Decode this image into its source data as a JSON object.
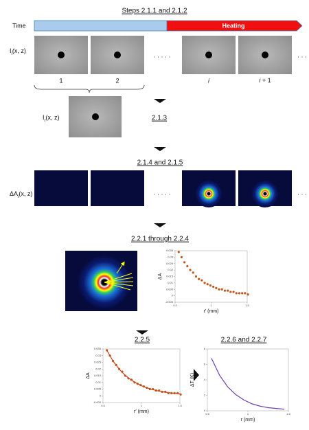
{
  "steps": {
    "acquire": "Steps 2.1.1 and 2.1.2",
    "reference": "2.1.3",
    "difference": "2.1.4 and 2.1.5",
    "profile": "2.2.1 through 2.2.4",
    "fit": "2.2.5",
    "temperature": "2.2.6 and 2.2.7"
  },
  "timeline": {
    "label": "Time",
    "heating": "Heating"
  },
  "frames": {
    "symbol": "I",
    "sub": "i",
    "args": "(x, z)",
    "indices": [
      {
        "main": "1"
      },
      {
        "main": "2"
      },
      {
        "main": "i"
      },
      {
        "main": "i",
        "rest": " + 1"
      }
    ],
    "ellipsis": "· · · · ·",
    "tail": "· · ·"
  },
  "reference": {
    "symbol": "I",
    "sub": "r",
    "args": "(x, z)"
  },
  "difference": {
    "symbol": "ΔA",
    "sub": "i",
    "args": "(x, z)",
    "ellipsis": "· · · · ·",
    "tail": "· · ·"
  },
  "charts": [
    {
      "type": "scatter",
      "ylabel": "ΔA",
      "xlabel": "r′ (mm)",
      "color": "#c0561c",
      "xlim": [
        0.5,
        1.5
      ],
      "ylim": [
        -0.005,
        0.035
      ],
      "xticks": [
        0.5,
        1,
        1.5
      ],
      "yticks": [
        -0.005,
        0,
        0.005,
        0.01,
        0.015,
        0.02,
        0.025,
        0.03,
        0.035
      ],
      "x": [
        0.55,
        0.59,
        0.63,
        0.67,
        0.71,
        0.75,
        0.79,
        0.83,
        0.87,
        0.91,
        0.95,
        0.99,
        1.03,
        1.07,
        1.11,
        1.15,
        1.19,
        1.23,
        1.27,
        1.31,
        1.35,
        1.39,
        1.43,
        1.47,
        1.51
      ],
      "values": [
        0.034,
        0.03,
        0.026,
        0.023,
        0.02,
        0.018,
        0.015,
        0.013,
        0.012,
        0.01,
        0.009,
        0.008,
        0.007,
        0.006,
        0.005,
        0.005,
        0.004,
        0.004,
        0.003,
        0.003,
        0.002,
        0.002,
        0.002,
        0.002,
        0.001
      ]
    },
    {
      "type": "scatter",
      "ylabel": "ΔA",
      "xlabel": "r′ (mm)",
      "color": "#c0561c",
      "line_color": "#d03a1a",
      "xlim": [
        0.5,
        1.5
      ],
      "ylim": [
        -0.005,
        0.035
      ],
      "xticks": [
        0.5,
        1,
        1.5
      ],
      "yticks": [
        -0.005,
        0,
        0.005,
        0.01,
        0.015,
        0.02,
        0.025,
        0.03,
        0.035
      ],
      "x": [
        0.55,
        0.59,
        0.63,
        0.67,
        0.71,
        0.75,
        0.79,
        0.83,
        0.87,
        0.91,
        0.95,
        0.99,
        1.03,
        1.07,
        1.11,
        1.15,
        1.19,
        1.23,
        1.27,
        1.31,
        1.35,
        1.39,
        1.43,
        1.47,
        1.51
      ],
      "values": [
        0.034,
        0.03,
        0.026,
        0.023,
        0.02,
        0.018,
        0.015,
        0.013,
        0.012,
        0.01,
        0.009,
        0.008,
        0.007,
        0.006,
        0.005,
        0.005,
        0.004,
        0.004,
        0.003,
        0.003,
        0.002,
        0.002,
        0.002,
        0.002,
        0.001
      ],
      "fit": [
        0.034,
        0.03,
        0.026,
        0.023,
        0.02,
        0.0175,
        0.0153,
        0.0134,
        0.0117,
        0.0102,
        0.009,
        0.0078,
        0.0069,
        0.006,
        0.0053,
        0.0046,
        0.004,
        0.0035,
        0.0031,
        0.0027,
        0.0024,
        0.0021,
        0.0018,
        0.0016,
        0.0014
      ]
    },
    {
      "type": "line",
      "ylabel": "ΔT (K)",
      "xlabel": "r (mm)",
      "color": "#6a3fb0",
      "xlim": [
        0.5,
        1.5
      ],
      "ylim": [
        0,
        8
      ],
      "xticks": [
        0.5,
        1,
        1.5
      ],
      "yticks": [
        0,
        2,
        4,
        6,
        8
      ],
      "x": [
        0.55,
        0.65,
        0.75,
        0.85,
        0.95,
        1.05,
        1.15,
        1.25,
        1.35,
        1.45
      ],
      "values": [
        6.8,
        4.6,
        3.1,
        2.1,
        1.4,
        0.9,
        0.6,
        0.4,
        0.3,
        0.2
      ]
    }
  ]
}
